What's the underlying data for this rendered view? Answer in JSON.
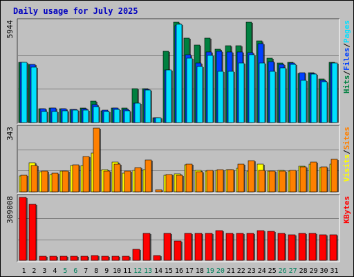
{
  "chart_data": {
    "type": "bar",
    "title": "Daily usage for July 2025",
    "days": [
      "1",
      "2",
      "3",
      "4",
      "5",
      "6",
      "7",
      "8",
      "9",
      "10",
      "11",
      "12",
      "13",
      "14",
      "15",
      "16",
      "17",
      "18",
      "19",
      "20",
      "21",
      "22",
      "23",
      "24",
      "25",
      "26",
      "27",
      "28",
      "29",
      "30",
      "31"
    ],
    "weekend_days": [
      "5",
      "6",
      "12",
      "13",
      "19",
      "20",
      "26",
      "27"
    ],
    "colors": {
      "hits": "#008040",
      "files": "#0040ff",
      "pages": "#00e0ff",
      "visits": "#ffff00",
      "sites": "#ff8000",
      "kbytes": "#ff0000",
      "weekday_label": "#000000",
      "weekend_label": "#00805c",
      "title": "#0000c0",
      "background": "#c0c0c0",
      "gridline": "#808080"
    },
    "panels": [
      {
        "id": "hits",
        "max_label": "5944",
        "ylim": [
          0,
          5944
        ],
        "legend": [
          {
            "text": "Hits",
            "color": "#008040"
          },
          {
            "text": "/",
            "color": "#000000"
          },
          {
            "text": "Files",
            "color": "#0040ff"
          },
          {
            "text": "/",
            "color": "#000000"
          },
          {
            "text": "Pages",
            "color": "#00e0ff"
          }
        ],
        "series": [
          {
            "name": "Hits",
            "color": "#008040",
            "values": [
              3560,
              3440,
              820,
              850,
              800,
              790,
              850,
              1280,
              710,
              850,
              840,
              2000,
              2000,
              300,
              4200,
              5900,
              4950,
              4550,
              4950,
              4300,
              4500,
              4500,
              5900,
              4800,
              3800,
              3500,
              3550,
              2900,
              2950,
              2550,
              3550
            ]
          },
          {
            "name": "Files",
            "color": "#0040ff",
            "values": [
              3560,
              3400,
              820,
              850,
              800,
              790,
              800,
              1050,
              720,
              850,
              760,
              1120,
              1950,
              300,
              3100,
              5700,
              4000,
              3500,
              4150,
              4200,
              4150,
              4150,
              4100,
              4650,
              3570,
              3440,
              3500,
              2920,
              2900,
              2500,
              3500
            ]
          },
          {
            "name": "Pages",
            "color": "#00e0ff",
            "values": [
              3530,
              3250,
              640,
              640,
              680,
              740,
              740,
              920,
              670,
              790,
              680,
              1120,
              1900,
              300,
              3100,
              5800,
              3770,
              3300,
              3950,
              3020,
              3000,
              3500,
              4000,
              3500,
              3000,
              3200,
              3400,
              2500,
              2870,
              2400,
              3500
            ]
          }
        ]
      },
      {
        "id": "visits",
        "max_label": "343",
        "ylim": [
          0,
          343
        ],
        "legend": [
          {
            "text": "Visits",
            "color": "#ffff00"
          },
          {
            "text": "/",
            "color": "#000000"
          },
          {
            "text": "Sites",
            "color": "#ff8000"
          }
        ],
        "series": [
          {
            "name": "Visits",
            "color": "#ffff00",
            "values": [
              85,
              155,
              108,
              92,
              110,
              140,
              143,
              210,
              120,
              160,
              100,
              115,
              120,
              0,
              90,
              97,
              145,
              116,
              113,
              115,
              120,
              125,
              110,
              148,
              112,
              114,
              112,
              138,
              150,
              130,
              150
            ]
          },
          {
            "name": "Sites",
            "color": "#ff8000",
            "values": [
              90,
              140,
              113,
              100,
              110,
              144,
              190,
              343,
              110,
              150,
              112,
              130,
              170,
              10,
              95,
              90,
              150,
              108,
              115,
              118,
              120,
              148,
              166,
              115,
              110,
              110,
              115,
              135,
              160,
              135,
              175
            ]
          }
        ]
      },
      {
        "id": "kbytes",
        "max_label": "309008",
        "ylim": [
          0,
          309008
        ],
        "legend": [
          {
            "text": "KBytes",
            "color": "#ff0000"
          }
        ],
        "series": [
          {
            "name": "KBytes",
            "color": "#ff0000",
            "values": [
              309008,
              276000,
              19000,
              19000,
              19000,
              22000,
              22000,
              25000,
              22000,
              22000,
              19000,
              54000,
              131000,
              25000,
              131000,
              96000,
              131000,
              131000,
              131000,
              147000,
              133000,
              133000,
              133000,
              147000,
              143000,
              131000,
              127000,
              131000,
              131000,
              127000,
              127000
            ]
          }
        ]
      }
    ]
  }
}
